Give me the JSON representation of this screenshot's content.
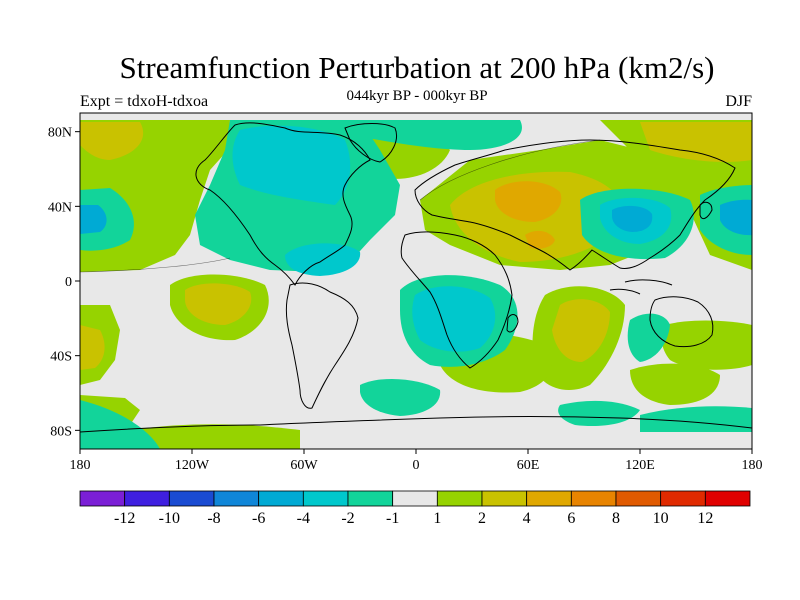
{
  "title": "Streamfunction Perturbation at 200 hPa (km2/s)",
  "subtitle": "044kyr BP - 000kyr BP",
  "experiment": "Expt = tdxoH-tdxoa",
  "season": "DJF",
  "lat_ticks": [
    "80N",
    "40N",
    "0",
    "40S",
    "80S"
  ],
  "lon_ticks": [
    "180",
    "120W",
    "60W",
    "0",
    "60E",
    "120E",
    "180"
  ],
  "colorbar": {
    "labels": [
      "-12",
      "-10",
      "-8",
      "-6",
      "-4",
      "-2",
      "-1",
      "1",
      "2",
      "4",
      "6",
      "8",
      "10",
      "12"
    ],
    "colors": [
      "#7b1fd6",
      "#3f1fe0",
      "#1a4bd2",
      "#0f86d8",
      "#00aad4",
      "#00c8cc",
      "#12d49a",
      "#e8e8e8",
      "#96d300",
      "#c9c200",
      "#e0a800",
      "#e88400",
      "#e05a00",
      "#e02a00",
      "#e00000"
    ]
  }
}
